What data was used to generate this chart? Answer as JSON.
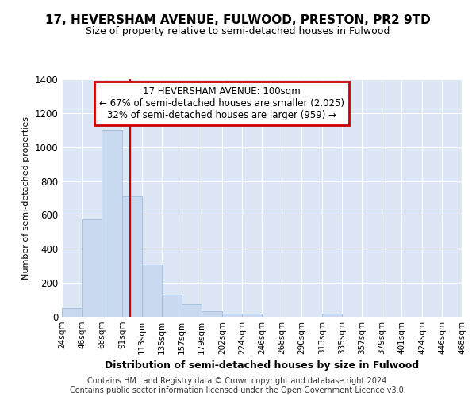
{
  "title": "17, HEVERSHAM AVENUE, FULWOOD, PRESTON, PR2 9TD",
  "subtitle": "Size of property relative to semi-detached houses in Fulwood",
  "xlabel": "Distribution of semi-detached houses by size in Fulwood",
  "ylabel": "Number of semi-detached properties",
  "annotation_title": "17 HEVERSHAM AVENUE: 100sqm",
  "annotation_line1": "← 67% of semi-detached houses are smaller (2,025)",
  "annotation_line2": "32% of semi-detached houses are larger (959) →",
  "footer1": "Contains HM Land Registry data © Crown copyright and database right 2024.",
  "footer2": "Contains public sector information licensed under the Open Government Licence v3.0.",
  "bin_edges": [
    24,
    46,
    68,
    91,
    113,
    135,
    157,
    179,
    202,
    224,
    246,
    268,
    290,
    313,
    335,
    357,
    379,
    401,
    424,
    446,
    468
  ],
  "bin_counts": [
    50,
    575,
    1100,
    710,
    310,
    130,
    75,
    35,
    20,
    20,
    0,
    0,
    0,
    20,
    0,
    0,
    0,
    0,
    0,
    0
  ],
  "bar_color": "#c9d9ef",
  "bar_edge_color": "#a0bcd8",
  "vline_x": 100,
  "vline_color": "#cc0000",
  "annotation_box_color": "#cc0000",
  "background_color": "#dce6f5",
  "grid_color": "#ffffff",
  "ylim": [
    0,
    1400
  ],
  "yticks": [
    0,
    200,
    400,
    600,
    800,
    1000,
    1200,
    1400
  ],
  "title_fontsize": 11,
  "subtitle_fontsize": 9,
  "footer_fontsize": 7
}
